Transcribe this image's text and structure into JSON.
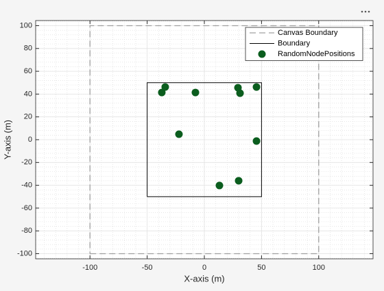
{
  "chart_data": {
    "type": "scatter",
    "xlabel": "X-axis (m)",
    "ylabel": "Y-axis (m)",
    "xlim": [
      -147.5,
      147.5
    ],
    "ylim": [
      -104.5,
      104.5
    ],
    "xticks": [
      -100,
      -50,
      0,
      50,
      100
    ],
    "yticks": [
      -100,
      -80,
      -60,
      -40,
      -20,
      0,
      20,
      40,
      60,
      80,
      100
    ],
    "grid": true,
    "minor_grid": true,
    "legend": "northeast",
    "series": [
      {
        "name": "Canvas Boundary",
        "type": "line",
        "style": "dashed",
        "color": "#a0a0a0",
        "x": [
          -100,
          100,
          100,
          -100,
          -100
        ],
        "y": [
          -100,
          -100,
          100,
          100,
          -100
        ]
      },
      {
        "name": "Boundary",
        "type": "line",
        "style": "solid",
        "color": "#000000",
        "x": [
          -50,
          50,
          50,
          -50,
          -50
        ],
        "y": [
          -50,
          -50,
          50,
          50,
          -50
        ]
      },
      {
        "name": "RandomNodePositions",
        "type": "scatter",
        "color": "#0b5d1e",
        "x": [
          -37.2,
          -34.2,
          -7.8,
          29.4,
          31.2,
          45.6,
          -22.2,
          45.6,
          13.2,
          30
        ],
        "y": [
          41.4,
          46.2,
          41.4,
          45.6,
          40.8,
          46.2,
          4.8,
          -1.2,
          -40.2,
          -36
        ]
      }
    ]
  }
}
